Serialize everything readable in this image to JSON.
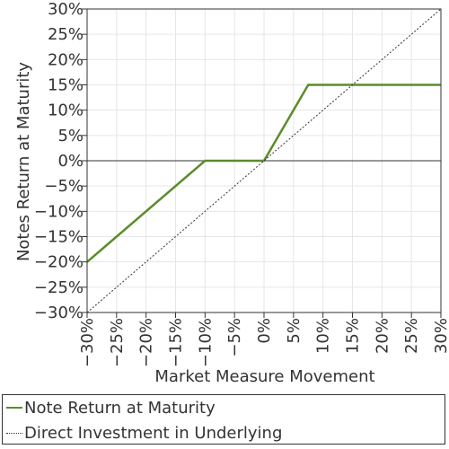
{
  "chart_data": {
    "type": "line",
    "title": "",
    "xlabel": "Market Measure Movement",
    "ylabel": "Notes Return at Maturity",
    "xlim": [
      -30,
      30
    ],
    "ylim": [
      -30,
      30
    ],
    "x_ticks": [
      "−30%",
      "−25%",
      "−20%",
      "−15%",
      "−10%",
      "−5%",
      "0%",
      "5%",
      "10%",
      "15%",
      "20%",
      "25%",
      "30%"
    ],
    "y_ticks": [
      "30%",
      "25%",
      "20%",
      "15%",
      "10%",
      "5%",
      "0%",
      "−5%",
      "−10%",
      "−15%",
      "−20%",
      "−25%",
      "−30%"
    ],
    "grid": true,
    "legend_position": "bottom",
    "series": [
      {
        "name": "Note Return at Maturity",
        "style": "solid",
        "color": "#5b8c2a",
        "x": [
          -30,
          -10,
          0,
          7.5,
          30
        ],
        "y": [
          -20,
          0,
          0,
          15,
          15
        ]
      },
      {
        "name": "Direct Investment in Underlying",
        "style": "dotted",
        "color": "#333333",
        "x": [
          -30,
          30
        ],
        "y": [
          -30,
          30
        ]
      }
    ]
  }
}
